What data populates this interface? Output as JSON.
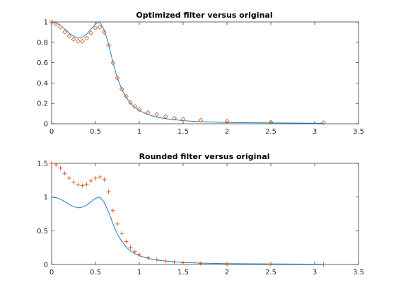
{
  "chart_data": [
    {
      "type": "line",
      "title": "Optimized filter versus original",
      "xlabel": "",
      "ylabel": "",
      "xlim": [
        0,
        3.5
      ],
      "ylim": [
        0,
        1
      ],
      "x_ticks": [
        "0",
        "0.5",
        "1",
        "1.5",
        "2",
        "2.5",
        "3",
        "3.5"
      ],
      "y_ticks": [
        "0",
        "0.2",
        "0.4",
        "0.6",
        "0.8",
        "1"
      ],
      "grid": false,
      "legend": "none",
      "series": [
        {
          "kind": "line",
          "color": "#0072BD",
          "x": [
            0,
            0.05,
            0.1,
            0.15,
            0.2,
            0.25,
            0.3,
            0.35,
            0.4,
            0.45,
            0.5,
            0.55,
            0.6,
            0.65,
            0.7,
            0.75,
            0.8,
            0.85,
            0.9,
            0.95,
            1.0,
            1.1,
            1.2,
            1.3,
            1.4,
            1.5,
            1.7,
            2.0,
            2.5,
            3.1
          ],
          "y": [
            1.0,
            0.99,
            0.97,
            0.93,
            0.89,
            0.86,
            0.84,
            0.85,
            0.88,
            0.93,
            0.98,
            1.0,
            0.92,
            0.78,
            0.6,
            0.45,
            0.34,
            0.26,
            0.2,
            0.16,
            0.13,
            0.09,
            0.065,
            0.05,
            0.04,
            0.03,
            0.02,
            0.012,
            0.008,
            0.005
          ]
        },
        {
          "kind": "markers",
          "marker": "diamond",
          "color": "#D95319",
          "x": [
            0,
            0.05,
            0.1,
            0.15,
            0.2,
            0.25,
            0.3,
            0.35,
            0.4,
            0.45,
            0.5,
            0.55,
            0.6,
            0.65,
            0.7,
            0.75,
            0.8,
            0.85,
            0.9,
            0.95,
            1.0,
            1.1,
            1.2,
            1.3,
            1.4,
            1.5,
            1.7,
            2.0,
            2.5,
            3.1
          ],
          "y": [
            1.0,
            0.98,
            0.95,
            0.9,
            0.86,
            0.83,
            0.81,
            0.81,
            0.84,
            0.89,
            0.94,
            0.95,
            0.9,
            0.77,
            0.6,
            0.45,
            0.34,
            0.27,
            0.21,
            0.17,
            0.14,
            0.11,
            0.09,
            0.07,
            0.055,
            0.045,
            0.035,
            0.025,
            0.015,
            0.01
          ]
        }
      ]
    },
    {
      "type": "line",
      "title": "Rounded filter versus original",
      "xlabel": "",
      "ylabel": "",
      "xlim": [
        0,
        3.5
      ],
      "ylim": [
        0,
        1.5
      ],
      "x_ticks": [
        "0",
        "0.5",
        "1",
        "1.5",
        "2",
        "2.5",
        "3",
        "3.5"
      ],
      "y_ticks": [
        "0",
        "0.5",
        "1",
        "1.5"
      ],
      "grid": false,
      "legend": "none",
      "series": [
        {
          "kind": "line",
          "color": "#0072BD",
          "x": [
            0,
            0.05,
            0.1,
            0.15,
            0.2,
            0.25,
            0.3,
            0.35,
            0.4,
            0.45,
            0.5,
            0.55,
            0.6,
            0.65,
            0.7,
            0.75,
            0.8,
            0.85,
            0.9,
            0.95,
            1.0,
            1.1,
            1.2,
            1.3,
            1.4,
            1.5,
            1.7,
            2.0,
            2.5,
            3.1
          ],
          "y": [
            1.0,
            0.99,
            0.97,
            0.93,
            0.89,
            0.86,
            0.84,
            0.85,
            0.88,
            0.93,
            0.98,
            1.0,
            0.92,
            0.78,
            0.6,
            0.45,
            0.34,
            0.26,
            0.2,
            0.16,
            0.13,
            0.09,
            0.065,
            0.05,
            0.04,
            0.03,
            0.02,
            0.012,
            0.008,
            0.005
          ]
        },
        {
          "kind": "markers",
          "marker": "plus",
          "color": "#D95319",
          "x": [
            0,
            0.05,
            0.1,
            0.15,
            0.2,
            0.25,
            0.3,
            0.35,
            0.4,
            0.45,
            0.5,
            0.55,
            0.6,
            0.65,
            0.7,
            0.75,
            0.8,
            0.85,
            0.9,
            0.95,
            1.0,
            1.1,
            1.2,
            1.3,
            1.4,
            1.5,
            1.7,
            2.0,
            2.5,
            3.1
          ],
          "y": [
            1.5,
            1.48,
            1.43,
            1.35,
            1.28,
            1.22,
            1.18,
            1.17,
            1.19,
            1.24,
            1.28,
            1.3,
            1.26,
            1.08,
            0.8,
            0.6,
            0.46,
            0.34,
            0.25,
            0.19,
            0.15,
            0.1,
            0.07,
            0.05,
            0.035,
            0.025,
            0.015,
            0.008,
            0.004,
            0.0
          ]
        }
      ]
    }
  ]
}
